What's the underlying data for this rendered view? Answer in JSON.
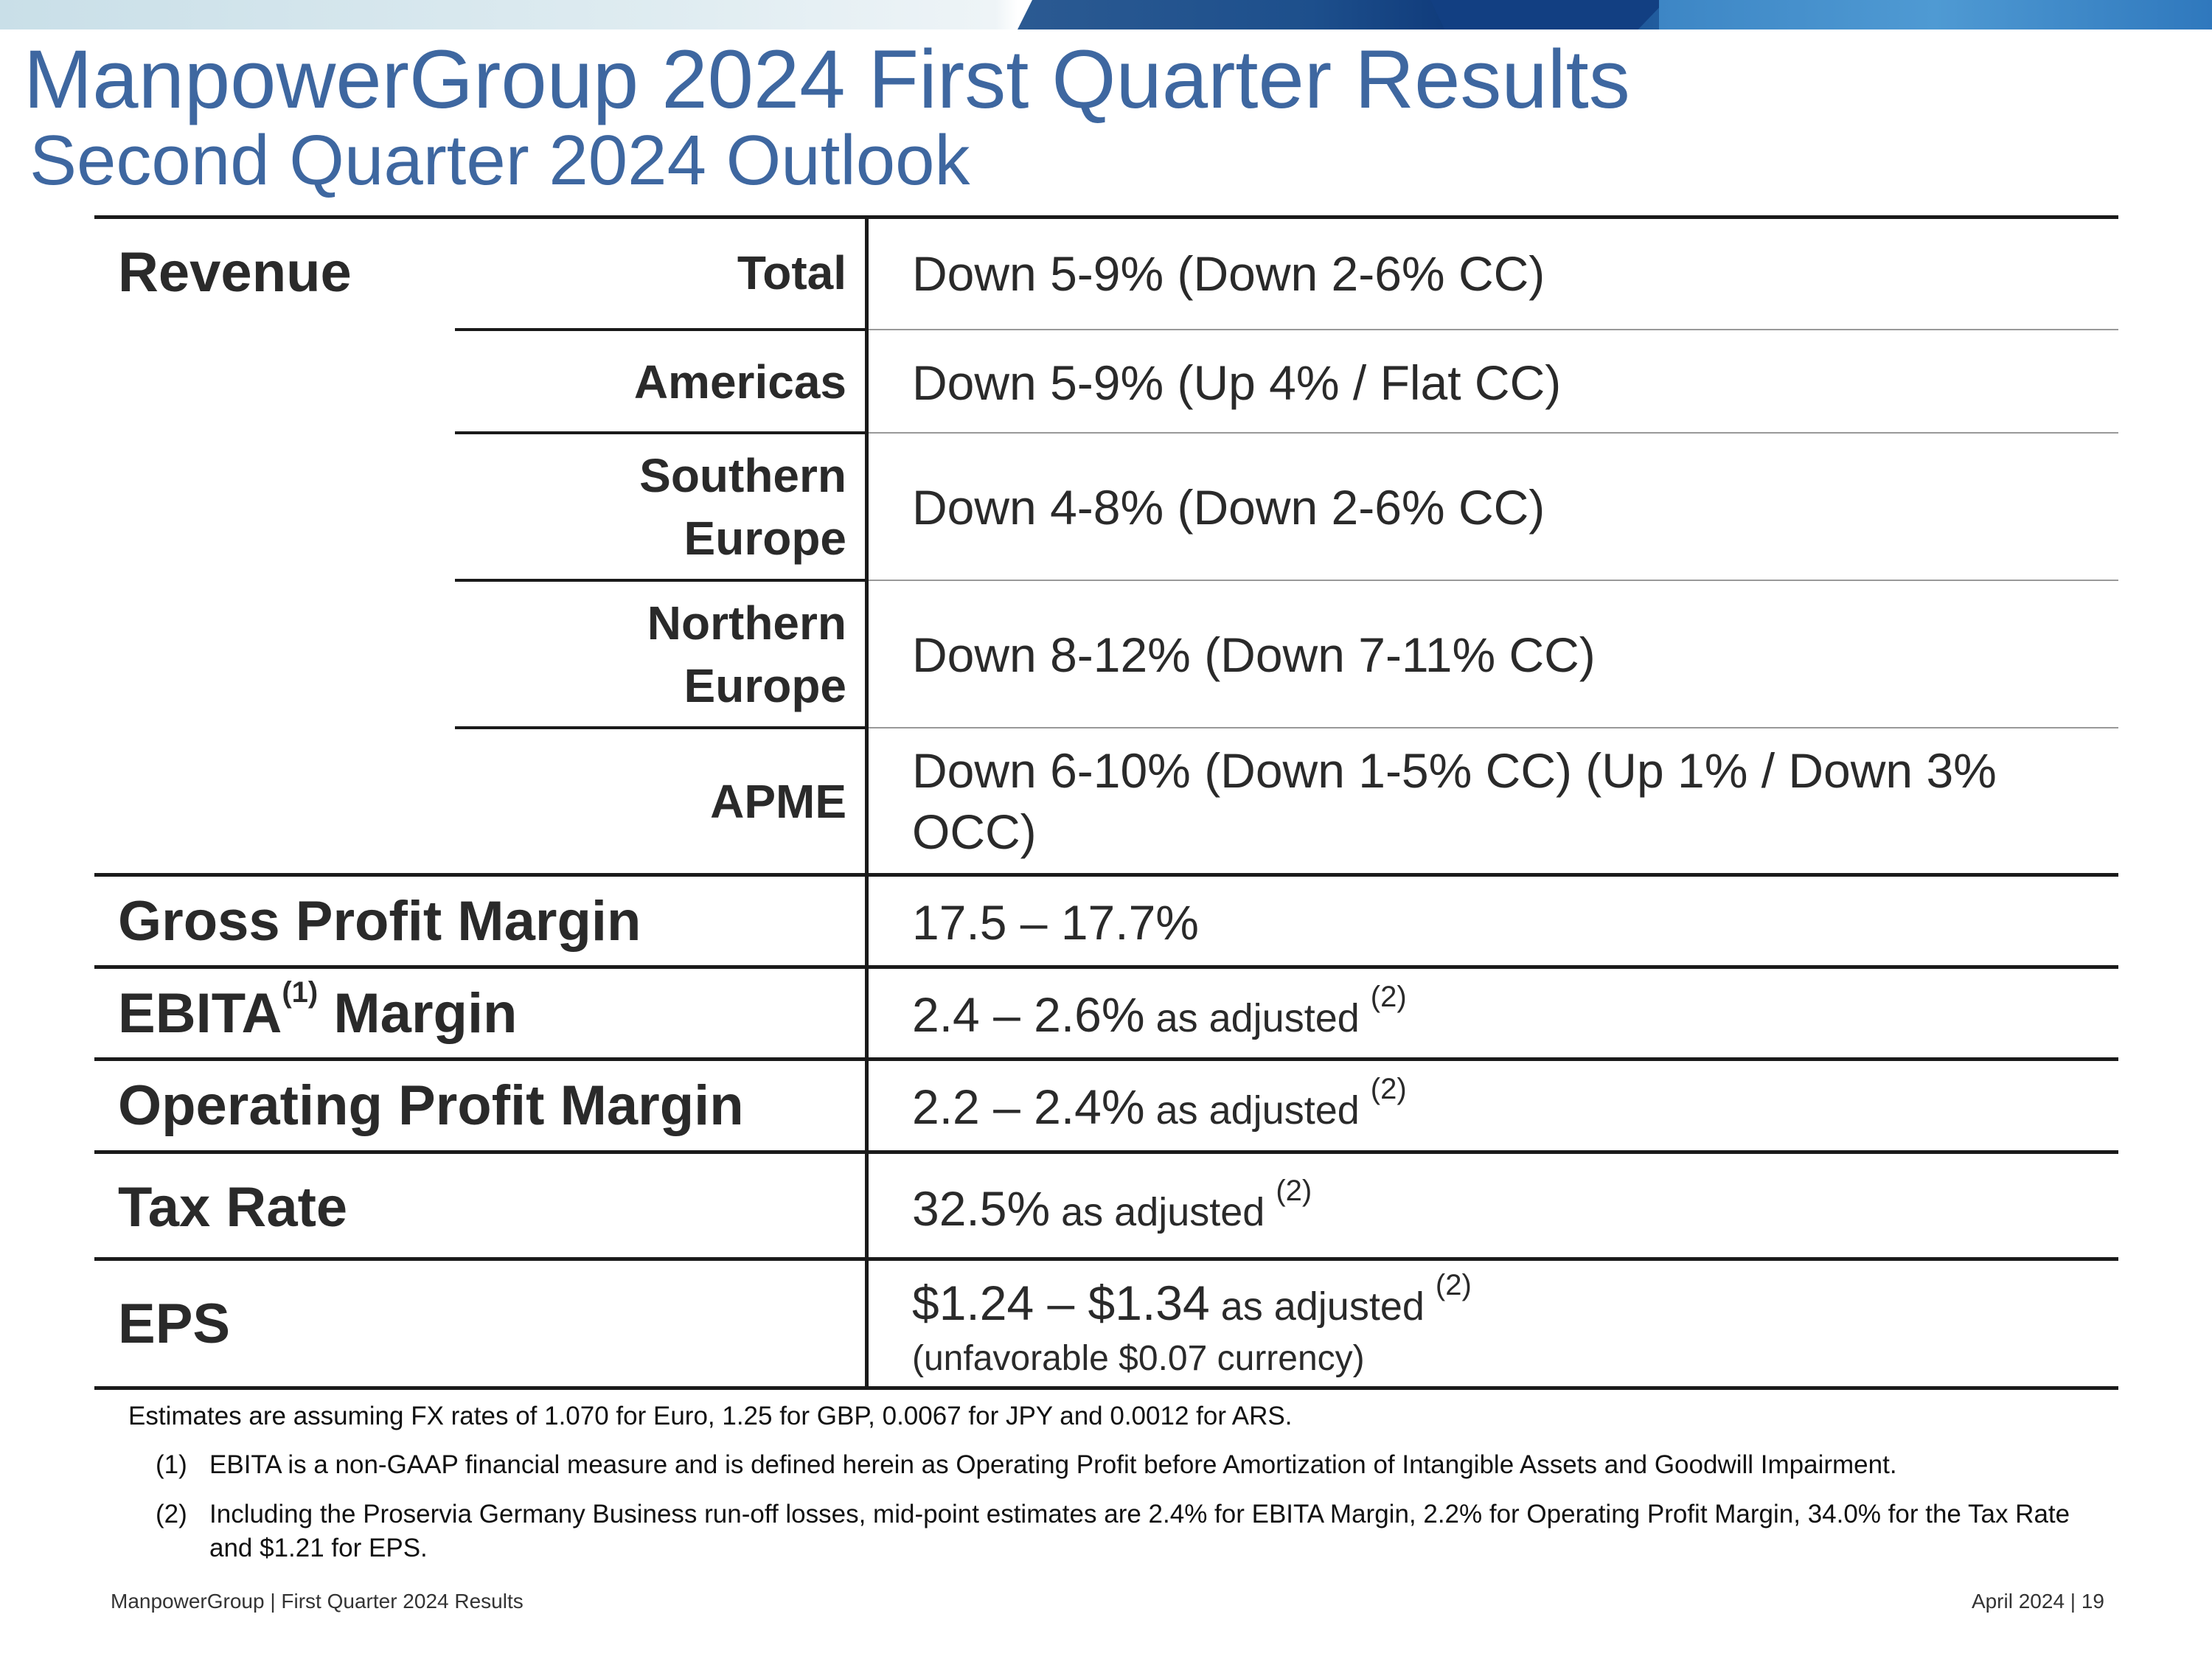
{
  "header": {
    "title": "ManpowerGroup 2024 First Quarter Results",
    "subtitle": "Second Quarter 2024 Outlook"
  },
  "table": {
    "revenue": {
      "label": "Revenue",
      "rows": [
        {
          "region": "Total",
          "value": "Down 5-9% (Down 2-6% CC)"
        },
        {
          "region": "Americas",
          "value": "Down 5-9% (Up 4% / Flat CC)"
        },
        {
          "region_line1": "Southern",
          "region_line2": "Europe",
          "value": "Down 4-8% (Down 2-6% CC)"
        },
        {
          "region_line1": "Northern",
          "region_line2": "Europe",
          "value": "Down 8-12% (Down 7-11% CC)"
        },
        {
          "region": "APME",
          "value_line1": "Down 6-10% (Down 1-5% CC) (Up 1% / Down 3%",
          "value_line2": "OCC)"
        }
      ]
    },
    "gross_profit": {
      "label": "Gross Profit Margin",
      "value": "17.5 – 17.7%"
    },
    "ebita": {
      "label": "EBITA",
      "label_sup": "(1)",
      "label_rest": " Margin",
      "value": "2.4 – 2.6%",
      "qualifier": " as adjusted ",
      "sup": "(2)"
    },
    "operating": {
      "label": "Operating Profit Margin",
      "value": "2.2 – 2.4%",
      "qualifier": " as adjusted ",
      "sup": "(2)"
    },
    "tax": {
      "label": "Tax Rate",
      "value": "32.5%",
      "qualifier": " as adjusted ",
      "sup": "(2)"
    },
    "eps": {
      "label": "EPS",
      "value": "$1.24 – $1.34",
      "qualifier": " as adjusted ",
      "sup": "(2)",
      "note": "(unfavorable $0.07 currency)"
    }
  },
  "notes": {
    "estimates": "Estimates are assuming FX rates of 1.070 for Euro, 1.25 for GBP, 0.0067 for JPY and 0.0012 for ARS.",
    "footnotes": [
      {
        "num": "(1)",
        "text": "EBITA is a non-GAAP financial measure and is defined herein as Operating Profit before Amortization of Intangible Assets and Goodwill Impairment."
      },
      {
        "num": "(2)",
        "text": "Including the Proservia Germany Business run-off losses, mid-point estimates are 2.4% for EBITA Margin, 2.2% for Operating Profit Margin, 34.0% for the Tax Rate and $1.21 for EPS."
      }
    ]
  },
  "footer": {
    "left": "ManpowerGroup  |  First Quarter 2024 Results",
    "right": "April 2024   |   19"
  }
}
